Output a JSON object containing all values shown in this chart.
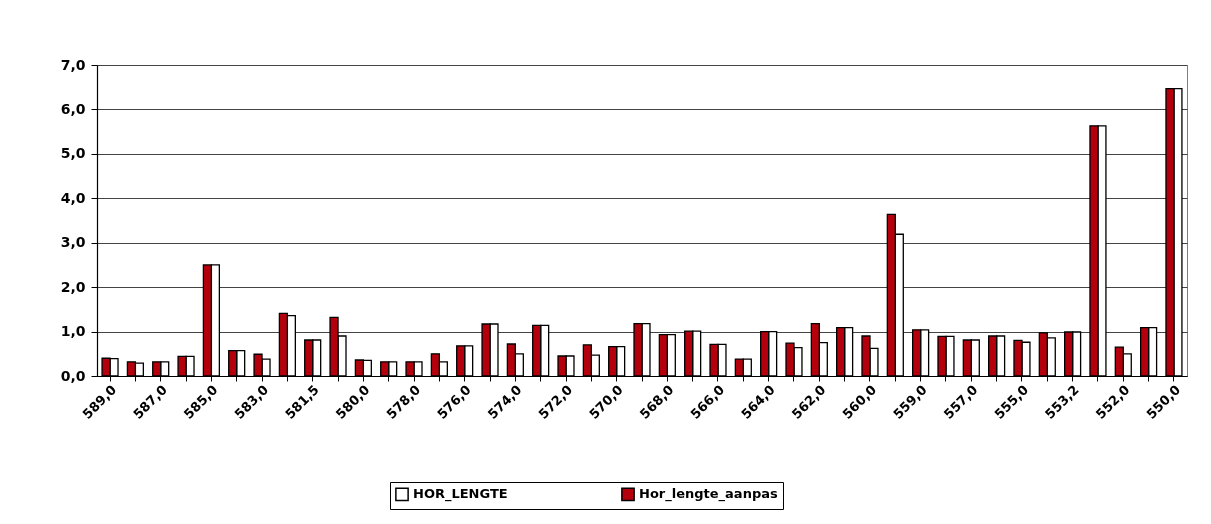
{
  "chart_data": {
    "type": "bar",
    "categories": [
      "589,0",
      null,
      "587,0",
      null,
      "585,0",
      null,
      "583,0",
      null,
      "581,5",
      null,
      "580,0",
      null,
      "578,0",
      null,
      "576,0",
      null,
      "574,0",
      null,
      "572,0",
      null,
      "570,0",
      null,
      "568,0",
      null,
      "566,0",
      null,
      "564,0",
      null,
      "562,0",
      null,
      "560,0",
      null,
      "559,0",
      null,
      "557,0",
      null,
      "555,0",
      null,
      "553,2",
      null,
      "552,0",
      null,
      "550,0"
    ],
    "series": [
      {
        "name": "HOR_LENGTE",
        "color": "#ffffff",
        "values": [
          0.39,
          0.29,
          0.32,
          0.44,
          2.5,
          0.57,
          0.38,
          1.36,
          0.81,
          0.9,
          0.35,
          0.32,
          0.32,
          0.32,
          0.68,
          1.17,
          0.5,
          1.14,
          0.45,
          0.47,
          0.66,
          1.18,
          0.93,
          1.01,
          0.71,
          0.38,
          1.0,
          0.64,
          0.75,
          1.09,
          0.62,
          3.19,
          1.04,
          0.89,
          0.81,
          0.9,
          0.76,
          0.86,
          0.99,
          5.63,
          0.5,
          1.09,
          6.47
        ]
      },
      {
        "name": "Hor_lengte_aanpas",
        "color": "#b3000c",
        "values": [
          0.4,
          0.32,
          0.32,
          0.44,
          2.5,
          0.57,
          0.49,
          1.41,
          0.81,
          1.32,
          0.36,
          0.32,
          0.32,
          0.5,
          0.68,
          1.17,
          0.72,
          1.14,
          0.45,
          0.7,
          0.66,
          1.18,
          0.93,
          1.01,
          0.71,
          0.38,
          1.0,
          0.74,
          1.18,
          1.09,
          0.9,
          3.64,
          1.04,
          0.89,
          0.81,
          0.9,
          0.8,
          0.97,
          0.99,
          5.63,
          0.65,
          1.09,
          6.47
        ]
      }
    ],
    "ylim": [
      0,
      7
    ],
    "yticks": [
      {
        "value": 0,
        "label": "0,0"
      },
      {
        "value": 1,
        "label": "1,0"
      },
      {
        "value": 2,
        "label": "2,0"
      },
      {
        "value": 3,
        "label": "3,0"
      },
      {
        "value": 4,
        "label": "4,0"
      },
      {
        "value": 5,
        "label": "5,0"
      },
      {
        "value": 6,
        "label": "6,0"
      },
      {
        "value": 7,
        "label": "7,0"
      }
    ],
    "grid": "y",
    "legend": "bottom"
  }
}
